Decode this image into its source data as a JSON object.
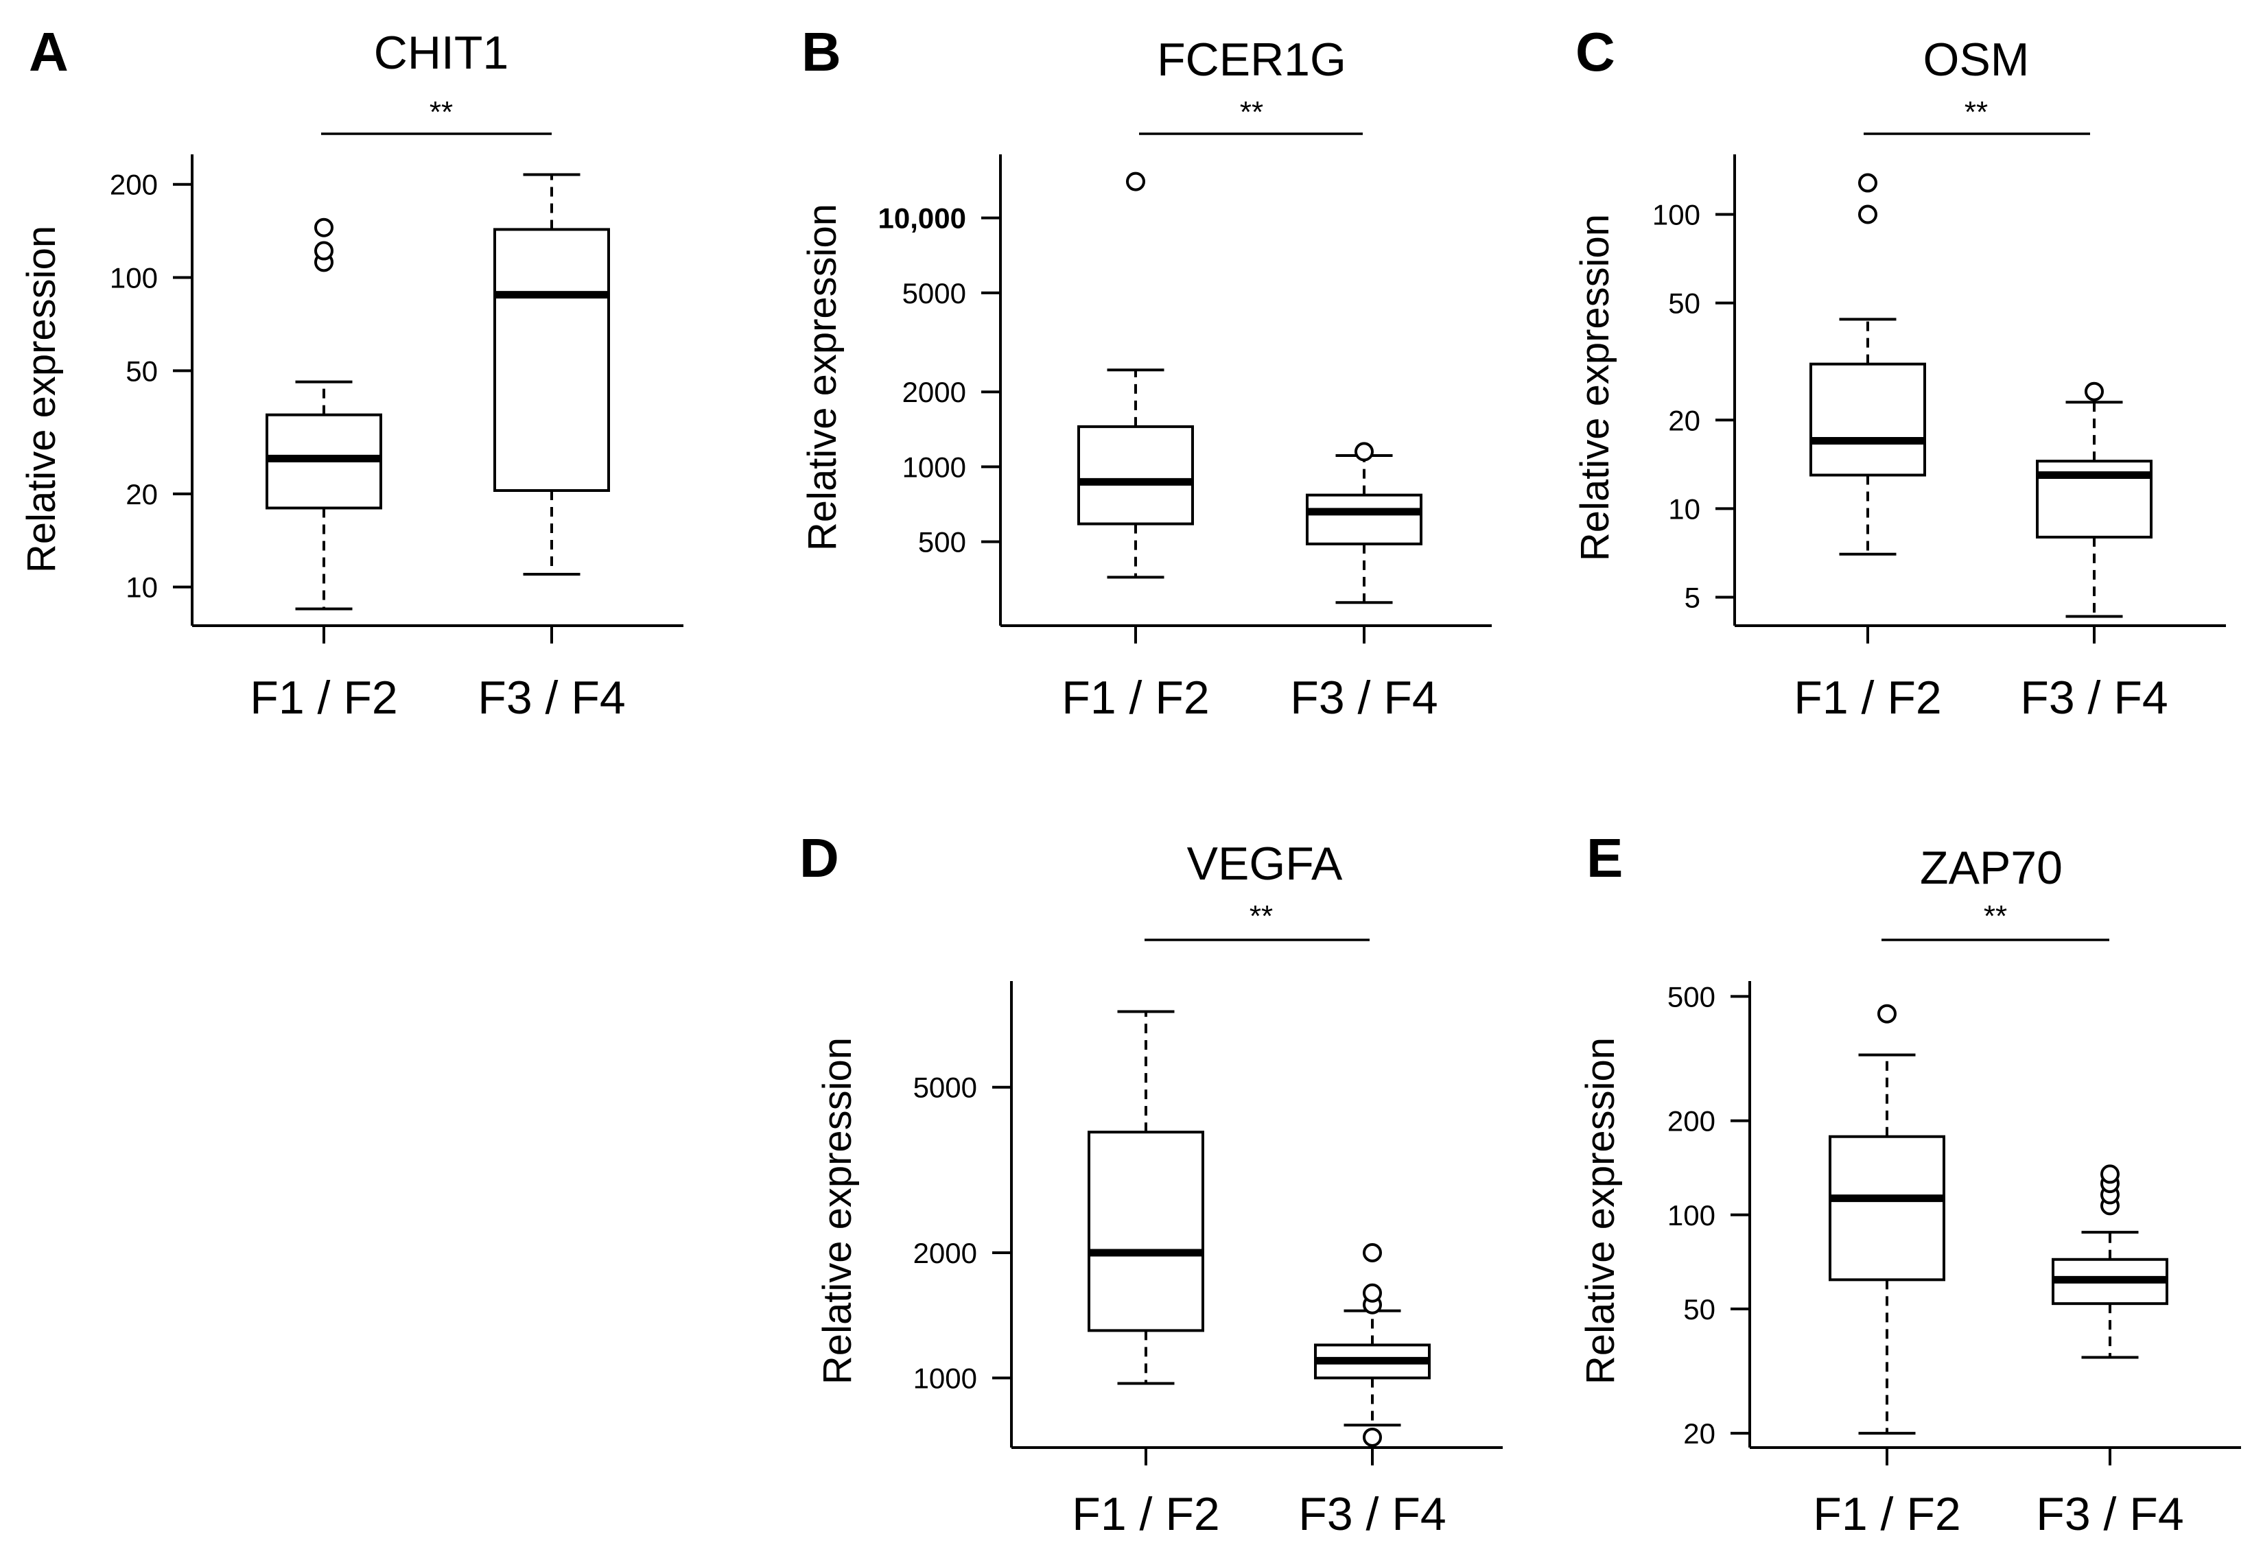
{
  "figure": {
    "panels": [
      "A",
      "B",
      "C",
      "D",
      "E"
    ]
  },
  "chart_data": [
    {
      "panel": "A",
      "type": "box",
      "title": "CHIT1",
      "ylabel": "Relative expression",
      "yscale": "log",
      "ylim": [
        7.5,
        250
      ],
      "yticks": [
        10,
        20,
        50,
        100,
        200
      ],
      "ytick_labels": [
        "10",
        "20",
        "50",
        "100",
        "200"
      ],
      "significance": "**",
      "groups": [
        {
          "name": "F1 / F2",
          "whisker_low": 8.5,
          "q1": 18,
          "median": 26,
          "q3": 36,
          "whisker_high": 46,
          "outliers": [
            112,
            122,
            145
          ]
        },
        {
          "name": "F3 / F4",
          "whisker_low": 11,
          "q1": 20.5,
          "median": 88,
          "q3": 143,
          "whisker_high": 215,
          "outliers": []
        }
      ]
    },
    {
      "panel": "B",
      "type": "box",
      "title": "FCER1G",
      "ylabel": "Relative expression",
      "yscale": "log",
      "ylim": [
        230,
        18000
      ],
      "yticks": [
        500,
        1000,
        2000,
        5000,
        10000
      ],
      "ytick_labels": [
        "500",
        "1000",
        "2000",
        "5000",
        "10,000"
      ],
      "significance": "**",
      "groups": [
        {
          "name": "F1 / F2",
          "whisker_low": 360,
          "q1": 590,
          "median": 870,
          "q3": 1450,
          "whisker_high": 2450,
          "outliers": [
            14000
          ]
        },
        {
          "name": "F3 / F4",
          "whisker_low": 285,
          "q1": 490,
          "median": 660,
          "q3": 770,
          "whisker_high": 1110,
          "outliers": [
            1150
          ]
        }
      ]
    },
    {
      "panel": "C",
      "type": "box",
      "title": "OSM",
      "ylabel": "Relative expression",
      "yscale": "log",
      "ylim": [
        4,
        160
      ],
      "yticks": [
        5,
        10,
        20,
        50,
        100
      ],
      "ytick_labels": [
        "5",
        "10",
        "20",
        "50",
        "100"
      ],
      "significance": "**",
      "groups": [
        {
          "name": "F1 / F2",
          "whisker_low": 7,
          "q1": 13,
          "median": 17,
          "q3": 31,
          "whisker_high": 44,
          "outliers": [
            100,
            128
          ]
        },
        {
          "name": "F3 / F4",
          "whisker_low": 4.3,
          "q1": 8,
          "median": 13,
          "q3": 14.5,
          "whisker_high": 23,
          "outliers": [
            25
          ]
        }
      ]
    },
    {
      "panel": "D",
      "type": "box",
      "title": "VEGFA",
      "ylabel": "Relative expression",
      "yscale": "log",
      "ylim": [
        680,
        9000
      ],
      "yticks": [
        1000,
        2000,
        5000
      ],
      "ytick_labels": [
        "1000",
        "2000",
        "5000"
      ],
      "significance": "**",
      "groups": [
        {
          "name": "F1 / F2",
          "whisker_low": 970,
          "q1": 1300,
          "median": 2000,
          "q3": 3900,
          "whisker_high": 7600,
          "outliers": []
        },
        {
          "name": "F3 / F4",
          "whisker_low": 770,
          "q1": 1000,
          "median": 1100,
          "q3": 1200,
          "whisker_high": 1450,
          "outliers": [
            720,
            1500,
            1600,
            2000
          ]
        }
      ]
    },
    {
      "panel": "E",
      "type": "box",
      "title": "ZAP70",
      "ylabel": "Relative expression",
      "yscale": "log",
      "ylim": [
        18,
        560
      ],
      "yticks": [
        20,
        50,
        100,
        200,
        500
      ],
      "ytick_labels": [
        "20",
        "50",
        "100",
        "200",
        "500"
      ],
      "significance": "**",
      "groups": [
        {
          "name": "F1 / F2",
          "whisker_low": 20,
          "q1": 62,
          "median": 113,
          "q3": 178,
          "whisker_high": 325,
          "outliers": [
            440
          ]
        },
        {
          "name": "F3 / F4",
          "whisker_low": 35,
          "q1": 52,
          "median": 62,
          "q3": 72,
          "whisker_high": 88,
          "outliers": [
            107,
            116,
            126,
            135
          ]
        }
      ]
    }
  ]
}
